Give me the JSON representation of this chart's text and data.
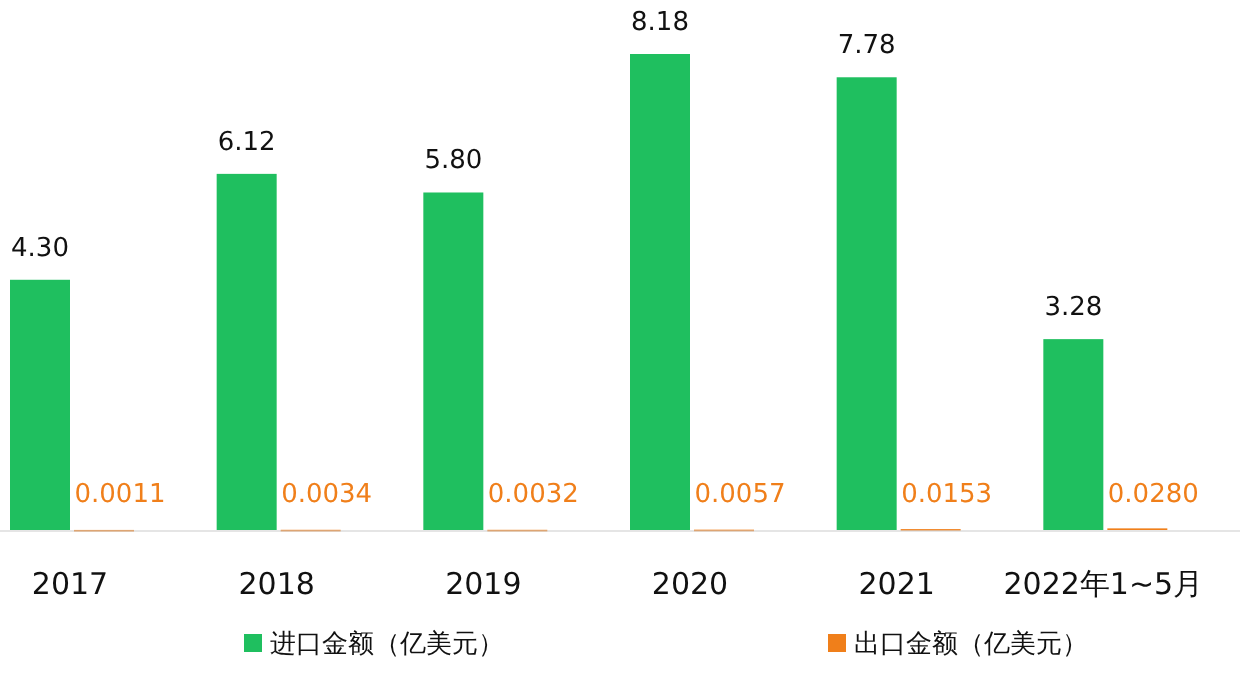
{
  "chart_data": {
    "type": "bar",
    "categories": [
      "2017",
      "2018",
      "2019",
      "2020",
      "2021",
      "2022年1~5月"
    ],
    "series": [
      {
        "name": "进口金额（亿美元）",
        "color": "#1fbf5f",
        "values": [
          4.3,
          6.12,
          5.8,
          8.18,
          7.78,
          3.28
        ],
        "value_labels": [
          "4.30",
          "6.12",
          "5.80",
          "8.18",
          "7.78",
          "3.28"
        ]
      },
      {
        "name": "出口金额（亿美元）",
        "color": "#f07f1a",
        "values": [
          0.0011,
          0.0034,
          0.0032,
          0.0057,
          0.0153,
          0.028
        ],
        "value_labels": [
          "0.0011",
          "0.0034",
          "0.0032",
          "0.0057",
          "0.0153",
          "0.0280"
        ]
      }
    ],
    "legend": "bottom"
  }
}
